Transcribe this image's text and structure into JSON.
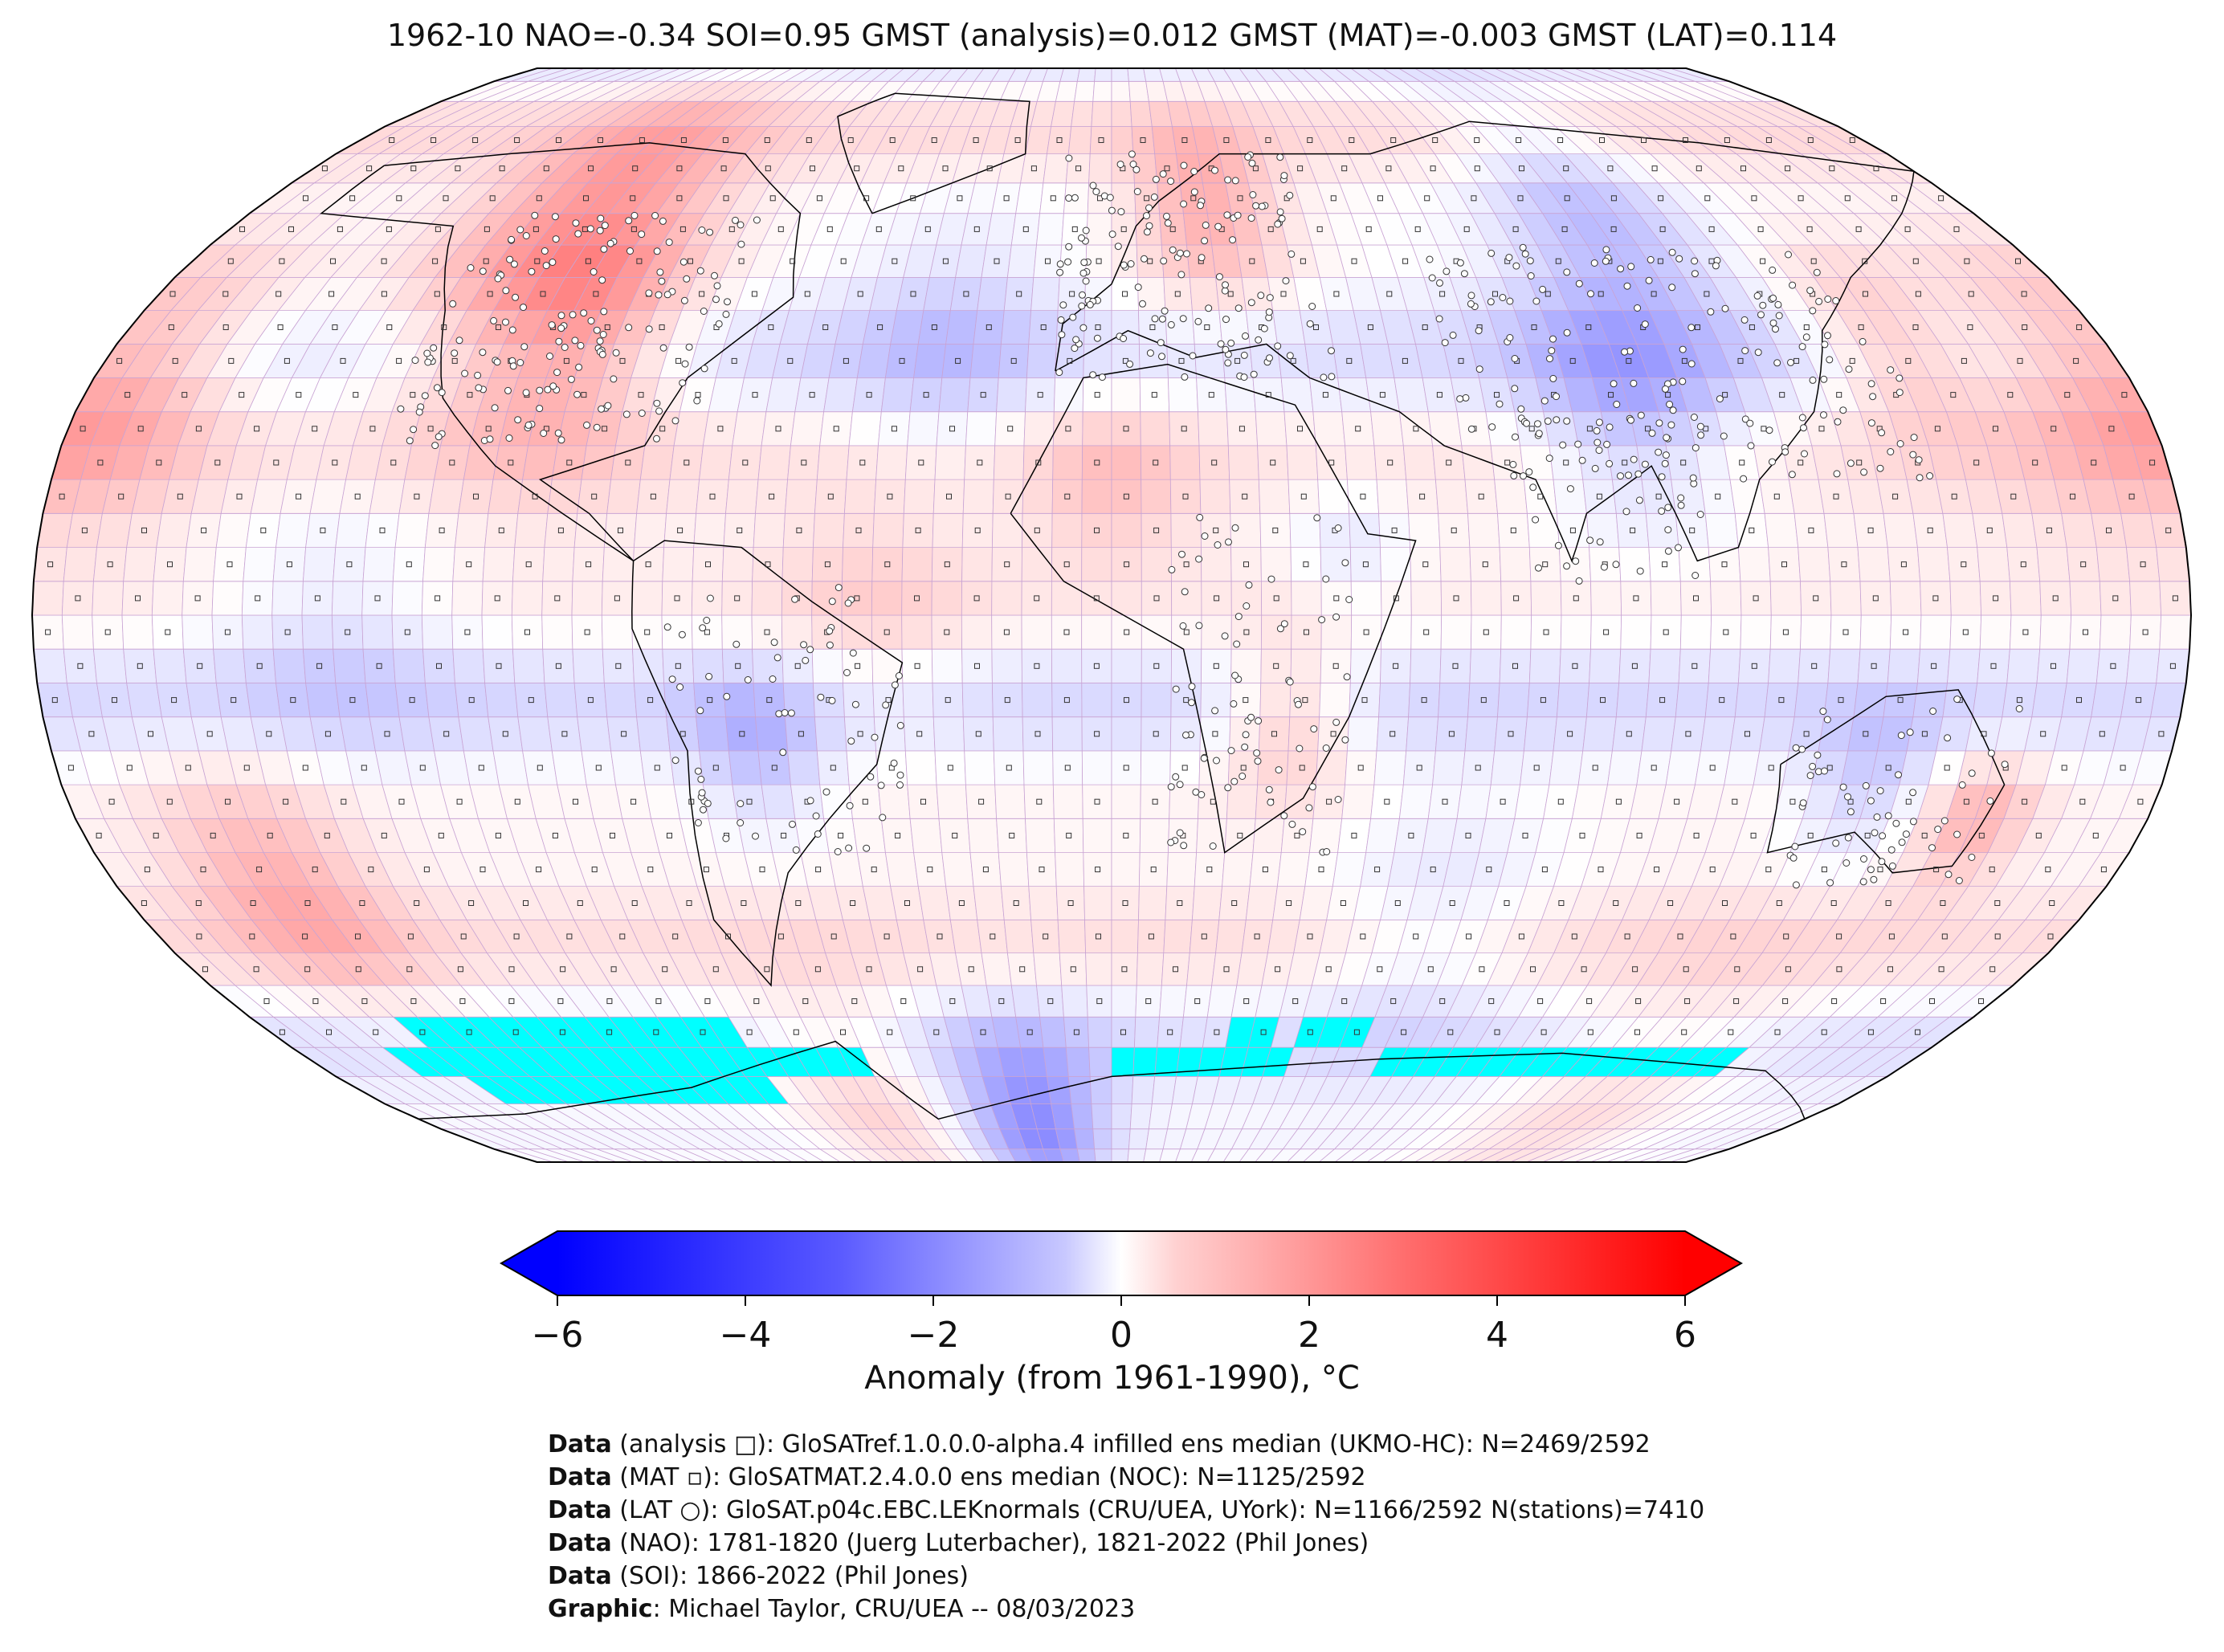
{
  "title": "1962-10 NAO=-0.34 SOI=0.95 GMST (analysis)=0.012 GMST (MAT)=-0.003 GMST (LAT)=0.114",
  "colorbar": {
    "label": "Anomaly (from 1961-1990), °C",
    "ticks": [
      "−6",
      "−4",
      "−2",
      "0",
      "2",
      "4",
      "6"
    ],
    "min": -6,
    "max": 6,
    "colors": {
      "cold": "#0000ff",
      "neutral": "#ffffff",
      "warm": "#ff0000",
      "sea_ice": "#00ffff"
    }
  },
  "map": {
    "projection": "Robinson",
    "grid": "5x5 degree cells",
    "sea_ice_color": "#00ffff",
    "outline_color": "#000000",
    "gridline_color": "#c080c8"
  },
  "credits": [
    {
      "head": "Data",
      "text": " (analysis □): GloSATref.1.0.0.0-alpha.4 infilled ens median (UKMO-HC): N=2469/2592"
    },
    {
      "head": "Data",
      "text": " (MAT ▫): GloSATMAT.2.4.0.0 ens median (NOC): N=1125/2592"
    },
    {
      "head": "Data",
      "text": " (LAT ○): GloSAT.p04c.EBC.LEKnormals (CRU/UEA, UYork): N=1166/2592 N(stations)=7410"
    },
    {
      "head": "Data",
      "text": " (NAO): 1781-1820 (Juerg Luterbacher), 1821-2022 (Phil Jones)"
    },
    {
      "head": "Data",
      "text": " (SOI): 1866-2022 (Phil Jones)"
    },
    {
      "head": "Graphic",
      "text": ": Michael Taylor, CRU/UEA -- 08/03/2023"
    }
  ]
}
